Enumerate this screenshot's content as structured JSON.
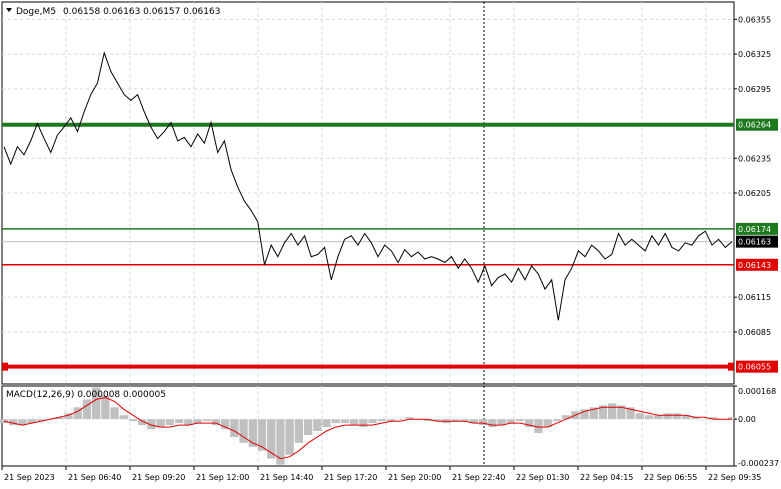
{
  "header": {
    "symbol": "Doge,M5",
    "ohlc": "0.06158 0.06163 0.06157 0.06163"
  },
  "chart_data": [
    {
      "type": "line",
      "ylim": [
        0.0604,
        0.0637
      ],
      "price_ticks": [
        "0.06355",
        "0.06325",
        "0.06295",
        "0.06264",
        "0.06235",
        "0.06205",
        "0.06174",
        "0.06163",
        "0.06143",
        "0.06115",
        "0.06085",
        "0.06055"
      ],
      "time_labels": [
        "21 Sep 2023",
        "21 Sep 06:40",
        "21 Sep 09:20",
        "21 Sep 12:00",
        "21 Sep 14:40",
        "21 Sep 17:20",
        "21 Sep 20:00",
        "21 Sep 22:40",
        "22 Sep 01:30",
        "22 Sep 04:15",
        "22 Sep 06:55",
        "22 Sep 09:35"
      ],
      "current_price": 0.06163,
      "levels": [
        {
          "value": 0.06264,
          "label": "0.06264",
          "color": "#1f7a1f",
          "kind": "thick"
        },
        {
          "value": 0.06174,
          "label": "0.06174",
          "color": "#1f7a1f",
          "kind": "thin"
        },
        {
          "value": 0.06143,
          "label": "0.06143",
          "color": "#e00000",
          "kind": "thin"
        },
        {
          "value": 0.06055,
          "label": "0.06055",
          "color": "#e00000",
          "kind": "thick"
        }
      ],
      "series": [
        {
          "values": [
            0.06245,
            0.0623,
            0.06245,
            0.06238,
            0.0625,
            0.06265,
            0.06252,
            0.0624,
            0.06255,
            0.06262,
            0.0627,
            0.06258,
            0.06275,
            0.0629,
            0.063,
            0.06326,
            0.0631,
            0.063,
            0.0629,
            0.06285,
            0.0629,
            0.06275,
            0.06262,
            0.06252,
            0.06258,
            0.06266,
            0.0625,
            0.06253,
            0.06245,
            0.06256,
            0.06248,
            0.06266,
            0.0624,
            0.0625,
            0.06225,
            0.0621,
            0.06198,
            0.0619,
            0.0618,
            0.06143,
            0.0616,
            0.0615,
            0.06162,
            0.0617,
            0.0616,
            0.06168,
            0.0615,
            0.06152,
            0.06158,
            0.0613,
            0.0615,
            0.06165,
            0.06168,
            0.0616,
            0.0617,
            0.06162,
            0.0615,
            0.0616,
            0.06155,
            0.06145,
            0.06156,
            0.0615,
            0.06154,
            0.06148,
            0.0615,
            0.06148,
            0.06145,
            0.0615,
            0.0614,
            0.06148,
            0.0614,
            0.06128,
            0.06142,
            0.06125,
            0.06132,
            0.06135,
            0.06128,
            0.0614,
            0.0613,
            0.06142,
            0.06135,
            0.06122,
            0.0613,
            0.06095,
            0.0613,
            0.0614,
            0.06155,
            0.0615,
            0.0616,
            0.06155,
            0.06148,
            0.06152,
            0.0617,
            0.0616,
            0.06165,
            0.0616,
            0.06155,
            0.06168,
            0.0616,
            0.0617,
            0.06158,
            0.06155,
            0.06162,
            0.0616,
            0.06168,
            0.06172,
            0.0616,
            0.06165,
            0.06158,
            0.06163
          ],
          "color": "#000000"
        }
      ]
    },
    {
      "type": "bar",
      "title": "MACD(12,26,9) 0.000008 0.000005",
      "ylim": [
        -0.000237,
        0.000168
      ],
      "value_ticks": [
        "0.000168",
        "0.00",
        "-0.000237"
      ],
      "histogram": [
        -2e-05,
        -3e-05,
        -3e-05,
        -2e-05,
        -1e-05,
        0.0,
        1e-05,
        3e-05,
        6e-05,
        0.0001,
        0.00016,
        0.00012,
        6e-05,
        2e-05,
        -1e-05,
        -3e-05,
        -5e-05,
        -4e-05,
        -3e-05,
        -2e-05,
        -3e-05,
        -2e-05,
        -1e-05,
        -3e-05,
        -5e-05,
        -9e-05,
        -0.00012,
        -0.00014,
        -0.00016,
        -0.0002,
        -0.00023,
        -0.00018,
        -0.00012,
        -8e-05,
        -6e-05,
        -4e-05,
        -2e-05,
        -2e-05,
        -3e-05,
        -4e-05,
        -2e-05,
        -1e-05,
        -1e-05,
        0.0,
        1e-05,
        0.0,
        -1e-05,
        -1e-05,
        -2e-05,
        -1e-05,
        -1e-05,
        -2e-05,
        -3e-05,
        -4e-05,
        -3e-05,
        -2e-05,
        -1e-05,
        -4e-05,
        -7e-05,
        -4e-05,
        -1e-05,
        2e-05,
        4e-05,
        5e-05,
        6e-05,
        7e-05,
        8e-05,
        7e-05,
        6e-05,
        3e-05,
        2e-05,
        2e-05,
        3e-05,
        3e-05,
        2e-05,
        1e-05,
        0.0,
        1e-05,
        0.0,
        1e-05
      ],
      "signal": [
        -1e-05,
        -2e-05,
        -3e-05,
        -2e-05,
        -1e-05,
        0.0,
        1e-05,
        2e-05,
        4e-05,
        7e-05,
        0.0001,
        0.00011,
        9e-05,
        5e-05,
        2e-05,
        -1e-05,
        -3e-05,
        -4e-05,
        -4e-05,
        -3e-05,
        -3e-05,
        -2e-05,
        -2e-05,
        -2e-05,
        -4e-05,
        -6e-05,
        -9e-05,
        -0.00012,
        -0.00014,
        -0.00017,
        -0.0002,
        -0.00019,
        -0.00016,
        -0.00012,
        -9e-05,
        -6e-05,
        -4e-05,
        -3e-05,
        -3e-05,
        -3e-05,
        -3e-05,
        -2e-05,
        -1e-05,
        -1e-05,
        0.0,
        0.0,
        0.0,
        -1e-05,
        -1e-05,
        -1e-05,
        -1e-05,
        -2e-05,
        -2e-05,
        -3e-05,
        -3e-05,
        -2e-05,
        -2e-05,
        -3e-05,
        -4e-05,
        -4e-05,
        -2e-05,
        0.0,
        2e-05,
        4e-05,
        5e-05,
        6e-05,
        6e-05,
        6e-05,
        5e-05,
        4e-05,
        3e-05,
        2e-05,
        2e-05,
        2e-05,
        2e-05,
        1e-05,
        1e-05,
        0.0,
        0.0,
        0.0
      ],
      "histogram_color": "#c0c0c0",
      "signal_color": "#e00000"
    }
  ]
}
